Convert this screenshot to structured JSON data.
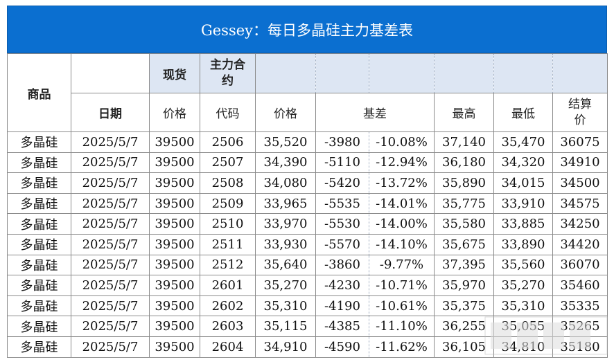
{
  "title": "Gessey：每日多晶硅主力基差表",
  "headers": {
    "product": "商品",
    "date": "日期",
    "spot": "现货",
    "spot_price": "价格",
    "main_contract_line1": "主力合",
    "main_contract_line2": "约",
    "code": "代码",
    "price": "价格",
    "basis": "基差",
    "high": "最高",
    "low": "最低",
    "settle_line1": "结算",
    "settle_line2": "价"
  },
  "rows": [
    {
      "product": "多晶硅",
      "date": "2025/5/7",
      "spot": "39500",
      "code": "2506",
      "price": "35,520",
      "basis": "-3980",
      "basis_pct": "-10.08%",
      "high": "37,140",
      "low": "35,470",
      "settle": "36075"
    },
    {
      "product": "多晶硅",
      "date": "2025/5/7",
      "spot": "39500",
      "code": "2507",
      "price": "34,390",
      "basis": "-5110",
      "basis_pct": "-12.94%",
      "high": "36,180",
      "low": "34,320",
      "settle": "34910"
    },
    {
      "product": "多晶硅",
      "date": "2025/5/7",
      "spot": "39500",
      "code": "2508",
      "price": "34,080",
      "basis": "-5420",
      "basis_pct": "-13.72%",
      "high": "35,890",
      "low": "34,015",
      "settle": "34500"
    },
    {
      "product": "多晶硅",
      "date": "2025/5/7",
      "spot": "39500",
      "code": "2509",
      "price": "33,965",
      "basis": "-5535",
      "basis_pct": "-14.01%",
      "high": "35,775",
      "low": "33,910",
      "settle": "34575"
    },
    {
      "product": "多晶硅",
      "date": "2025/5/7",
      "spot": "39500",
      "code": "2510",
      "price": "33,970",
      "basis": "-5530",
      "basis_pct": "-14.00%",
      "high": "35,580",
      "low": "33,885",
      "settle": "34250"
    },
    {
      "product": "多晶硅",
      "date": "2025/5/7",
      "spot": "39500",
      "code": "2511",
      "price": "33,930",
      "basis": "-5570",
      "basis_pct": "-14.10%",
      "high": "35,675",
      "low": "33,890",
      "settle": "34420"
    },
    {
      "product": "多晶硅",
      "date": "2025/5/7",
      "spot": "39500",
      "code": "2512",
      "price": "35,640",
      "basis": "-3860",
      "basis_pct": "-9.77%",
      "high": "37,395",
      "low": "35,560",
      "settle": "36070"
    },
    {
      "product": "多晶硅",
      "date": "2025/5/7",
      "spot": "39500",
      "code": "2601",
      "price": "35,270",
      "basis": "-4230",
      "basis_pct": "-10.71%",
      "high": "35,970",
      "low": "35,270",
      "settle": "35460"
    },
    {
      "product": "多晶硅",
      "date": "2025/5/7",
      "spot": "39500",
      "code": "2602",
      "price": "35,310",
      "basis": "-4190",
      "basis_pct": "-10.61%",
      "high": "35,375",
      "low": "35,310",
      "settle": "35335"
    },
    {
      "product": "多晶硅",
      "date": "2025/5/7",
      "spot": "39500",
      "code": "2603",
      "price": "35,115",
      "basis": "-4385",
      "basis_pct": "-11.10%",
      "high": "36,255",
      "low": "35,055",
      "settle": "35265"
    },
    {
      "product": "多晶硅",
      "date": "2025/5/7",
      "spot": "39500",
      "code": "2604",
      "price": "34,910",
      "basis": "-4590",
      "basis_pct": "-11.62%",
      "high": "36,105",
      "low": "34,810",
      "settle": "35180"
    }
  ],
  "colors": {
    "title_bg": "#0b6fd0",
    "header_shade": "#dde6f3",
    "link_blue": "#1f3fb5",
    "basis_green": "#11a23a"
  }
}
